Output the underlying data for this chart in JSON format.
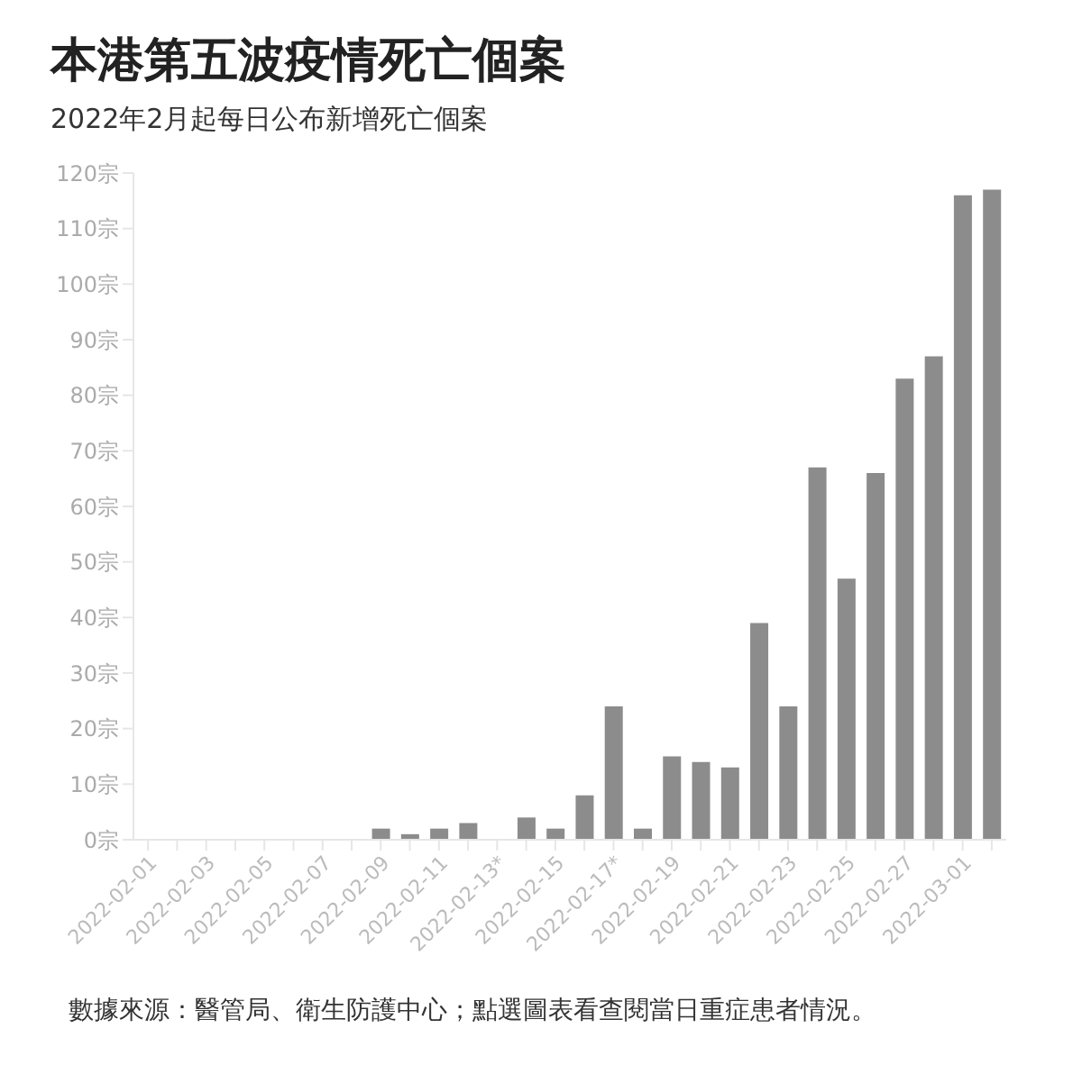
{
  "chart_data": {
    "type": "bar",
    "title": "本港第五波疫情死亡個案",
    "subtitle": "2022年2月起每日公布新增死亡個案",
    "categories": [
      "2022-02-01",
      null,
      "2022-02-03",
      null,
      "2022-02-05",
      null,
      "2022-02-07",
      null,
      "2022-02-09",
      null,
      "2022-02-11",
      null,
      "2022-02-13*",
      null,
      "2022-02-15",
      null,
      "2022-02-17*",
      null,
      "2022-02-19",
      null,
      "2022-02-21",
      null,
      "2022-02-23",
      null,
      "2022-02-25",
      null,
      "2022-02-27",
      null,
      "2022-03-01",
      null
    ],
    "values": [
      0,
      0,
      0,
      0,
      0,
      0,
      0,
      0,
      2,
      1,
      2,
      3,
      0,
      4,
      2,
      8,
      24,
      2,
      15,
      14,
      13,
      39,
      24,
      67,
      47,
      66,
      83,
      87,
      116,
      117
    ],
    "color": "#8c8c8c",
    "ylim": [
      0,
      120
    ],
    "yticks": [
      {
        "value": 0,
        "label": "0宗"
      },
      {
        "value": 10,
        "label": "10宗"
      },
      {
        "value": 20,
        "label": "20宗"
      },
      {
        "value": 30,
        "label": "30宗"
      },
      {
        "value": 40,
        "label": "40宗"
      },
      {
        "value": 50,
        "label": "50宗"
      },
      {
        "value": 60,
        "label": "60宗"
      },
      {
        "value": 70,
        "label": "70宗"
      },
      {
        "value": 80,
        "label": "80宗"
      },
      {
        "value": 90,
        "label": "90宗"
      },
      {
        "value": 100,
        "label": "100宗"
      },
      {
        "value": 110,
        "label": "110宗"
      },
      {
        "value": 120,
        "label": "120宗"
      }
    ],
    "grid": false,
    "legend": false,
    "annotations": [
      "數據來源：醫管局、衛生防護中心；點選圖表看查閱當日重症患者情況。"
    ]
  }
}
